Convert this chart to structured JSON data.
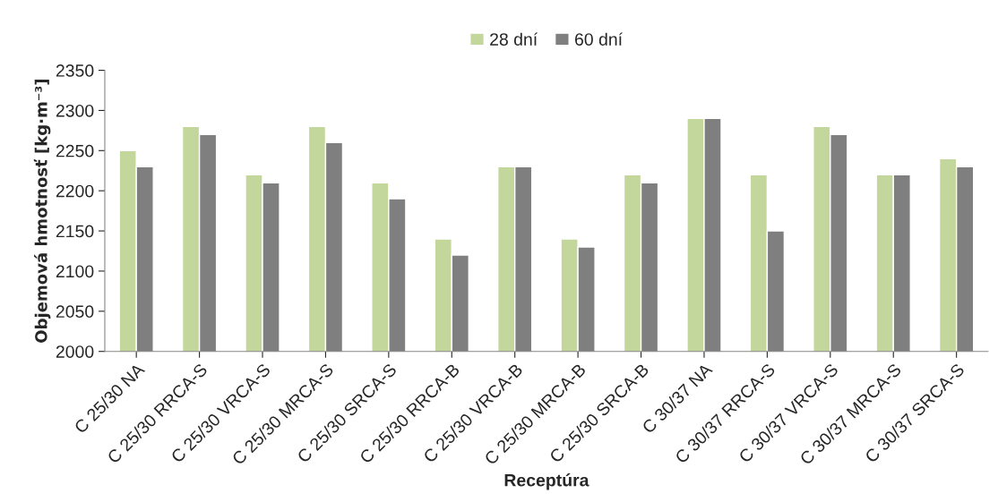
{
  "chart_data": {
    "type": "bar",
    "xlabel": "Receptúra",
    "ylabel": "Objemová hmotnosť [kg·m⁻³]",
    "categories": [
      "C 25/30 NA",
      "C 25/30 RRCA-S",
      "C 25/30 VRCA-S",
      "C 25/30 MRCA-S",
      "C 25/30 SRCA-S",
      "C 25/30 RRCA-B",
      "C 25/30 VRCA-B",
      "C 25/30 MRCA-B",
      "C 25/30 SRCA-B",
      "C 30/37 NA",
      "C 30/37 RRCA-S",
      "C 30/37 VRCA-S",
      "C 30/37 MRCA-S",
      "C 30/37 SRCA-S"
    ],
    "series": [
      {
        "name": "28 dní",
        "color": "#c3d69b",
        "values": [
          2250,
          2280,
          2220,
          2280,
          2210,
          2140,
          2230,
          2140,
          2220,
          2290,
          2220,
          2280,
          2220,
          2240
        ]
      },
      {
        "name": "60 dní",
        "color": "#7f7f7f",
        "values": [
          2230,
          2270,
          2210,
          2260,
          2190,
          2120,
          2230,
          2130,
          2210,
          2290,
          2150,
          2270,
          2220,
          2230
        ]
      }
    ],
    "ylim": [
      2000,
      2350
    ],
    "yticks": [
      2000,
      2050,
      2100,
      2150,
      2200,
      2250,
      2300,
      2350
    ],
    "grid": false,
    "legend": "top"
  }
}
